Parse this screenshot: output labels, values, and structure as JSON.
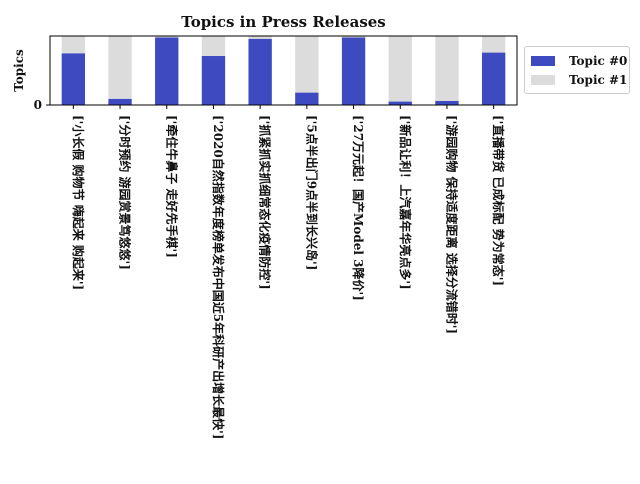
{
  "chart_data": {
    "type": "bar",
    "stacked": true,
    "title": "Topics in Press Releases",
    "xlabel": "",
    "ylabel": "Topics",
    "yticks": [
      "0"
    ],
    "ylim": [
      0,
      1
    ],
    "categories": [
      "['小长假 购物节 嗨起来 购起来']",
      "['分时预约 游园赏景笃悠悠']",
      "['牵住牛鼻子 走好先手棋']",
      "['2020自然指数年度榜单发布中国近5年科研产出增长最快']",
      "['抓紧抓实抓细常态化疫情防控']",
      "['5点半出门9点半到长兴岛']",
      "['27万元起！国产Model 3降价']",
      "['新品让利！上汽嘉年华亮点多']",
      "['游园购物 保持适度距离 选择分流错时']",
      "['直播带货 已成标配 势为常态']"
    ],
    "series": [
      {
        "name": "Topic #0",
        "values": [
          0.75,
          0.09,
          0.98,
          0.71,
          0.96,
          0.18,
          0.98,
          0.05,
          0.06,
          0.76
        ]
      },
      {
        "name": "Topic #1",
        "values": [
          0.25,
          0.91,
          0.02,
          0.29,
          0.04,
          0.82,
          0.02,
          0.95,
          0.94,
          0.24
        ]
      }
    ],
    "colors": [
      "#3d4ac0",
      "#dcdcdc"
    ],
    "legend_position": "right",
    "grid": false
  }
}
